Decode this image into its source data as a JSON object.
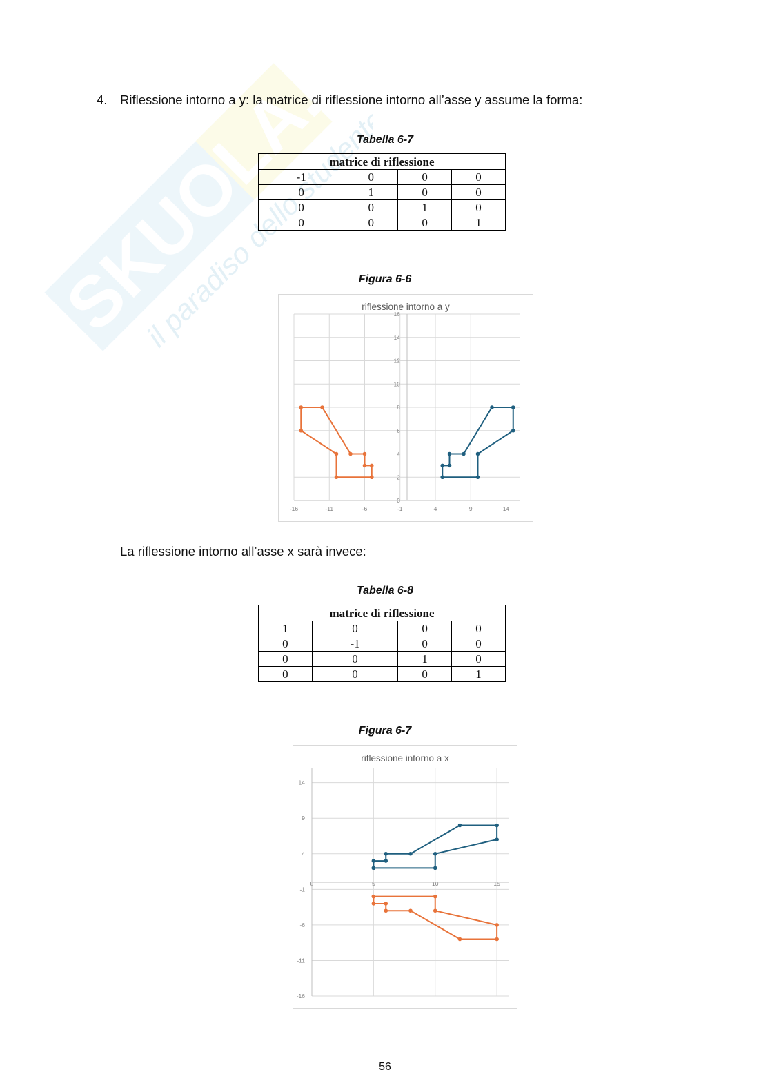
{
  "item": {
    "number": "4.",
    "text": "Riflessione intorno a y: la matrice di riflessione intorno all’asse y assume la forma:"
  },
  "table1": {
    "caption": "Tabella 6-7",
    "header": "matrice di riflessione",
    "rows": [
      [
        "-1",
        "0",
        "0",
        "0"
      ],
      [
        "0",
        "1",
        "0",
        "0"
      ],
      [
        "0",
        "0",
        "1",
        "0"
      ],
      [
        "0",
        "0",
        "0",
        "1"
      ]
    ]
  },
  "figure1": {
    "caption": "Figura 6-6",
    "title": "riflessione intorno a y"
  },
  "paragraph": "La riflessione intorno all’asse x sarà invece:",
  "table2": {
    "caption": "Tabella 6-8",
    "header": "matrice di riflessione",
    "rows": [
      [
        "1",
        "0",
        "0",
        "0"
      ],
      [
        "0",
        "-1",
        "0",
        "0"
      ],
      [
        "0",
        "0",
        "1",
        "0"
      ],
      [
        "0",
        "0",
        "0",
        "1"
      ]
    ]
  },
  "figure2": {
    "caption": "Figura 6-7",
    "title": "riflessione intorno a x"
  },
  "page_number": "56",
  "watermark": {
    "brand": "SKUOLA.net",
    "tagline": "il paradiso dello studente"
  },
  "colors": {
    "blue": "#1f5f7f",
    "orange": "#e8733a",
    "grid": "#d9d9d9",
    "axis": "#bfbfbf",
    "tick": "#7f7f7f"
  },
  "chart_data": [
    {
      "type": "line",
      "title": "riflessione intorno a y",
      "xlim": [
        -16,
        16
      ],
      "ylim": [
        0,
        16
      ],
      "x_ticks": [
        "-16",
        "-11",
        "-6",
        "-1",
        "4",
        "9",
        "14"
      ],
      "y_ticks": [
        "0",
        "2",
        "4",
        "6",
        "8",
        "10",
        "12",
        "14",
        "16"
      ],
      "grid": true,
      "series": [
        {
          "color": "#1f5f7f",
          "points": [
            [
              5,
              2
            ],
            [
              5,
              3
            ],
            [
              6,
              3
            ],
            [
              6,
              4
            ],
            [
              8,
              4
            ],
            [
              12,
              8
            ],
            [
              15,
              8
            ],
            [
              15,
              6
            ],
            [
              10,
              4
            ],
            [
              10,
              2
            ],
            [
              5,
              2
            ]
          ]
        },
        {
          "color": "#e8733a",
          "points": [
            [
              -5,
              2
            ],
            [
              -5,
              3
            ],
            [
              -6,
              3
            ],
            [
              -6,
              4
            ],
            [
              -8,
              4
            ],
            [
              -12,
              8
            ],
            [
              -15,
              8
            ],
            [
              -15,
              6
            ],
            [
              -10,
              4
            ],
            [
              -10,
              2
            ],
            [
              -5,
              2
            ]
          ]
        }
      ]
    },
    {
      "type": "line",
      "title": "riflessione intorno a x",
      "xlim": [
        0,
        16
      ],
      "ylim": [
        -16,
        16
      ],
      "x_ticks": [
        "0",
        "5",
        "10",
        "15"
      ],
      "y_ticks": [
        "-16",
        "-11",
        "-6",
        "-1",
        "4",
        "9",
        "14"
      ],
      "grid": true,
      "series": [
        {
          "color": "#1f5f7f",
          "points": [
            [
              5,
              2
            ],
            [
              5,
              3
            ],
            [
              6,
              3
            ],
            [
              6,
              4
            ],
            [
              8,
              4
            ],
            [
              12,
              8
            ],
            [
              15,
              8
            ],
            [
              15,
              6
            ],
            [
              10,
              4
            ],
            [
              10,
              2
            ],
            [
              5,
              2
            ]
          ]
        },
        {
          "color": "#e8733a",
          "points": [
            [
              5,
              -2
            ],
            [
              5,
              -3
            ],
            [
              6,
              -3
            ],
            [
              6,
              -4
            ],
            [
              8,
              -4
            ],
            [
              12,
              -8
            ],
            [
              15,
              -8
            ],
            [
              15,
              -6
            ],
            [
              10,
              -4
            ],
            [
              10,
              -2
            ],
            [
              5,
              -2
            ]
          ]
        }
      ]
    }
  ]
}
